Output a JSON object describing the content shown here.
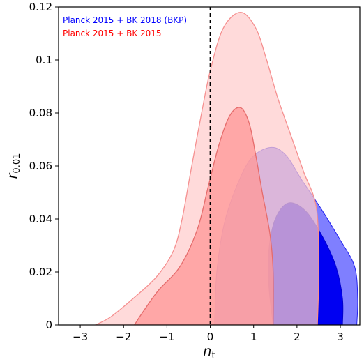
{
  "chart_data": {
    "type": "contour",
    "xlabel": {
      "main": "n",
      "sub": "t"
    },
    "ylabel": {
      "main": "r",
      "sub": "0.01"
    },
    "xlim": [
      -3.5,
      3.45
    ],
    "ylim": [
      0,
      0.12
    ],
    "xticks": [
      -3,
      -2,
      -1,
      0,
      1,
      2,
      3
    ],
    "xtick_labels": [
      "−3",
      "−2",
      "−1",
      "0",
      "1",
      "2",
      "3"
    ],
    "yticks": [
      0,
      0.02,
      0.04,
      0.06,
      0.08,
      0.1,
      0.12
    ],
    "ytick_labels": [
      "0",
      "0.02",
      "0.04",
      "0.06",
      "0.08",
      "0.1",
      "0.12"
    ],
    "grid": false,
    "legend_position": "top-left",
    "vertical_reference_line": {
      "x": 0,
      "style": "dashed",
      "color": "#000000"
    },
    "series": [
      {
        "name": "Planck 2015 + BK 2015",
        "color": "#ff0000",
        "contours": [
          {
            "level": "95%",
            "fill": "#ffcccc",
            "stroke": "#f59090",
            "points": [
              [
                -2.65,
                0
              ],
              [
                -2.3,
                0.003
              ],
              [
                -1.85,
                0.009
              ],
              [
                -1.25,
                0.018
              ],
              [
                -0.85,
                0.028
              ],
              [
                -0.65,
                0.04
              ],
              [
                -0.45,
                0.058
              ],
              [
                -0.2,
                0.08
              ],
              [
                0,
                0.096
              ],
              [
                0.3,
                0.112
              ],
              [
                0.7,
                0.118
              ],
              [
                1.05,
                0.112
              ],
              [
                1.3,
                0.1
              ],
              [
                1.55,
                0.086
              ],
              [
                1.85,
                0.072
              ],
              [
                2.15,
                0.058
              ],
              [
                2.45,
                0.044
              ],
              [
                2.5,
                0.02
              ],
              [
                2.47,
                0
              ]
            ]
          },
          {
            "level": "68%",
            "fill": "#ff9999",
            "stroke": "#e56b6b",
            "points": [
              [
                -1.75,
                0
              ],
              [
                -1.55,
                0.005
              ],
              [
                -1.2,
                0.013
              ],
              [
                -0.7,
                0.022
              ],
              [
                -0.3,
                0.036
              ],
              [
                -0.05,
                0.052
              ],
              [
                0.2,
                0.068
              ],
              [
                0.45,
                0.079
              ],
              [
                0.7,
                0.082
              ],
              [
                0.9,
                0.076
              ],
              [
                1.05,
                0.064
              ],
              [
                1.2,
                0.05
              ],
              [
                1.38,
                0.034
              ],
              [
                1.45,
                0.02
              ],
              [
                1.45,
                0
              ]
            ]
          }
        ]
      },
      {
        "name": "Planck 2015 + BK 2018 (BKP)",
        "color": "#0000ff",
        "contours": [
          {
            "level": "95%",
            "fill": "#7f7fff",
            "stroke": "#2222ee",
            "points": [
              [
                0.1,
                0
              ],
              [
                0.15,
                0.02
              ],
              [
                0.32,
                0.038
              ],
              [
                0.6,
                0.052
              ],
              [
                0.95,
                0.063
              ],
              [
                1.4,
                0.067
              ],
              [
                1.75,
                0.064
              ],
              [
                2.1,
                0.055
              ],
              [
                2.55,
                0.044
              ],
              [
                3.0,
                0.032
              ],
              [
                3.33,
                0.022
              ],
              [
                3.4,
                0.01
              ],
              [
                3.38,
                0
              ]
            ]
          },
          {
            "level": "68%",
            "fill": "#0000f2",
            "stroke": "#0000cc",
            "points": [
              [
                1.45,
                0
              ],
              [
                1.35,
                0.015
              ],
              [
                1.35,
                0.028
              ],
              [
                1.5,
                0.04
              ],
              [
                1.8,
                0.046
              ],
              [
                2.2,
                0.043
              ],
              [
                2.6,
                0.033
              ],
              [
                2.9,
                0.022
              ],
              [
                3.05,
                0.01
              ],
              [
                3.05,
                0
              ]
            ]
          }
        ]
      }
    ],
    "legend_entries": [
      {
        "label": "Planck 2015 + BK 2018 (BKP)",
        "color": "#0000ff"
      },
      {
        "label": "Planck 2015 + BK 2015",
        "color": "#ff0000"
      }
    ]
  }
}
